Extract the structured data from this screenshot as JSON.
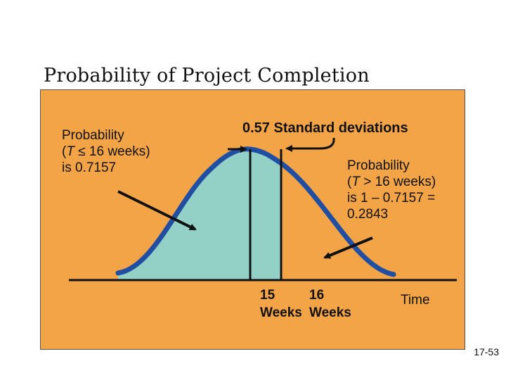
{
  "slide": {
    "title": "Probability of Project Completion",
    "slide_number": "17-53"
  },
  "annotations": {
    "left_line1": "Probability",
    "left_line2_var": "T",
    "left_line2_rest": " ≤ 16 weeks)",
    "left_line2_open": "(",
    "left_line3": "is 0.7157",
    "sd_label": "0.57 Standard deviations",
    "right_line1": "Probability",
    "right_line2_open": "(",
    "right_line2_var": "T",
    "right_line2_rest": " > 16 weeks)",
    "right_line3": "is 1 – 0.7157 =",
    "right_line4": "0.2843"
  },
  "axis": {
    "tick_15_top": "15",
    "tick_15_bottom": "Weeks",
    "tick_16_top": "16",
    "tick_16_bottom": "Weeks",
    "label": "Time"
  },
  "colors": {
    "panel": "#f3a447",
    "shaded_area": "#93d0c6",
    "curve": "#1f4ea3",
    "lines": "#111111"
  }
}
